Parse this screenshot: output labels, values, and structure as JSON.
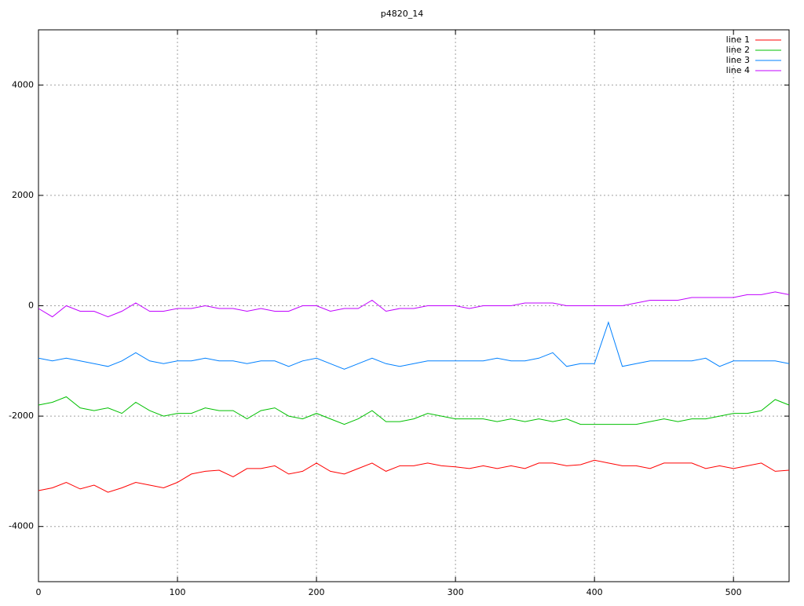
{
  "chart_data": {
    "type": "line",
    "title": "p4820_14",
    "x": [
      0,
      10,
      20,
      30,
      40,
      50,
      60,
      70,
      80,
      90,
      100,
      110,
      120,
      130,
      140,
      150,
      160,
      170,
      180,
      190,
      200,
      210,
      220,
      230,
      240,
      250,
      260,
      270,
      280,
      290,
      300,
      310,
      320,
      330,
      340,
      350,
      360,
      370,
      380,
      390,
      400,
      410,
      420,
      430,
      440,
      450,
      460,
      470,
      480,
      490,
      500,
      510,
      520,
      530,
      540
    ],
    "series": [
      {
        "name": "line 1",
        "color": "#ff0000",
        "values": [
          -3350,
          -3300,
          -3200,
          -3320,
          -3250,
          -3380,
          -3300,
          -3200,
          -3250,
          -3300,
          -3200,
          -3050,
          -3000,
          -2980,
          -3100,
          -2950,
          -2950,
          -2900,
          -3050,
          -3000,
          -2850,
          -3000,
          -3050,
          -2950,
          -2850,
          -3000,
          -2900,
          -2900,
          -2850,
          -2900,
          -2920,
          -2950,
          -2900,
          -2950,
          -2900,
          -2950,
          -2850,
          -2850,
          -2900,
          -2880,
          -2800,
          -2850,
          -2900,
          -2900,
          -2950,
          -2850,
          -2850,
          -2850,
          -2950,
          -2900,
          -2950,
          -2900,
          -2850,
          -3000,
          -2980
        ]
      },
      {
        "name": "line 2",
        "color": "#00c000",
        "values": [
          -1800,
          -1750,
          -1650,
          -1850,
          -1900,
          -1850,
          -1950,
          -1750,
          -1900,
          -2000,
          -1950,
          -1950,
          -1850,
          -1900,
          -1900,
          -2050,
          -1900,
          -1850,
          -2000,
          -2050,
          -1950,
          -2050,
          -2150,
          -2050,
          -1900,
          -2100,
          -2100,
          -2050,
          -1950,
          -2000,
          -2050,
          -2050,
          -2050,
          -2100,
          -2050,
          -2100,
          -2050,
          -2100,
          -2050,
          -2150,
          -2150,
          -2150,
          -2150,
          -2150,
          -2100,
          -2050,
          -2100,
          -2050,
          -2050,
          -2000,
          -1950,
          -1950,
          -1900,
          -1700,
          -1800
        ]
      },
      {
        "name": "line 3",
        "color": "#0080ff",
        "values": [
          -950,
          -1000,
          -950,
          -1000,
          -1050,
          -1100,
          -1000,
          -850,
          -1000,
          -1050,
          -1000,
          -1000,
          -950,
          -1000,
          -1000,
          -1050,
          -1000,
          -1000,
          -1100,
          -1000,
          -950,
          -1050,
          -1150,
          -1050,
          -950,
          -1050,
          -1100,
          -1050,
          -1000,
          -1000,
          -1000,
          -1000,
          -1000,
          -950,
          -1000,
          -1000,
          -950,
          -850,
          -1100,
          -1050,
          -1050,
          -300,
          -1100,
          -1050,
          -1000,
          -1000,
          -1000,
          -1000,
          -950,
          -1100,
          -1000,
          -1000,
          -1000,
          -1000,
          -1050
        ]
      },
      {
        "name": "line 4",
        "color": "#c000ff",
        "values": [
          -50,
          -200,
          0,
          -100,
          -100,
          -200,
          -100,
          50,
          -100,
          -100,
          -50,
          -50,
          0,
          -50,
          -50,
          -100,
          -50,
          -100,
          -100,
          0,
          0,
          -100,
          -50,
          -50,
          100,
          -100,
          -50,
          -50,
          0,
          0,
          0,
          -50,
          0,
          0,
          0,
          50,
          50,
          50,
          0,
          0,
          0,
          0,
          0,
          50,
          100,
          100,
          100,
          150,
          150,
          150,
          150,
          200,
          200,
          250,
          200
        ]
      }
    ],
    "xlim": [
      0,
      540
    ],
    "ylim": [
      -5000,
      5000
    ],
    "xticks": [
      0,
      100,
      200,
      300,
      400,
      500
    ],
    "yticks": [
      -4000,
      -2000,
      0,
      2000,
      4000
    ],
    "grid": true,
    "legend": "upper right"
  }
}
